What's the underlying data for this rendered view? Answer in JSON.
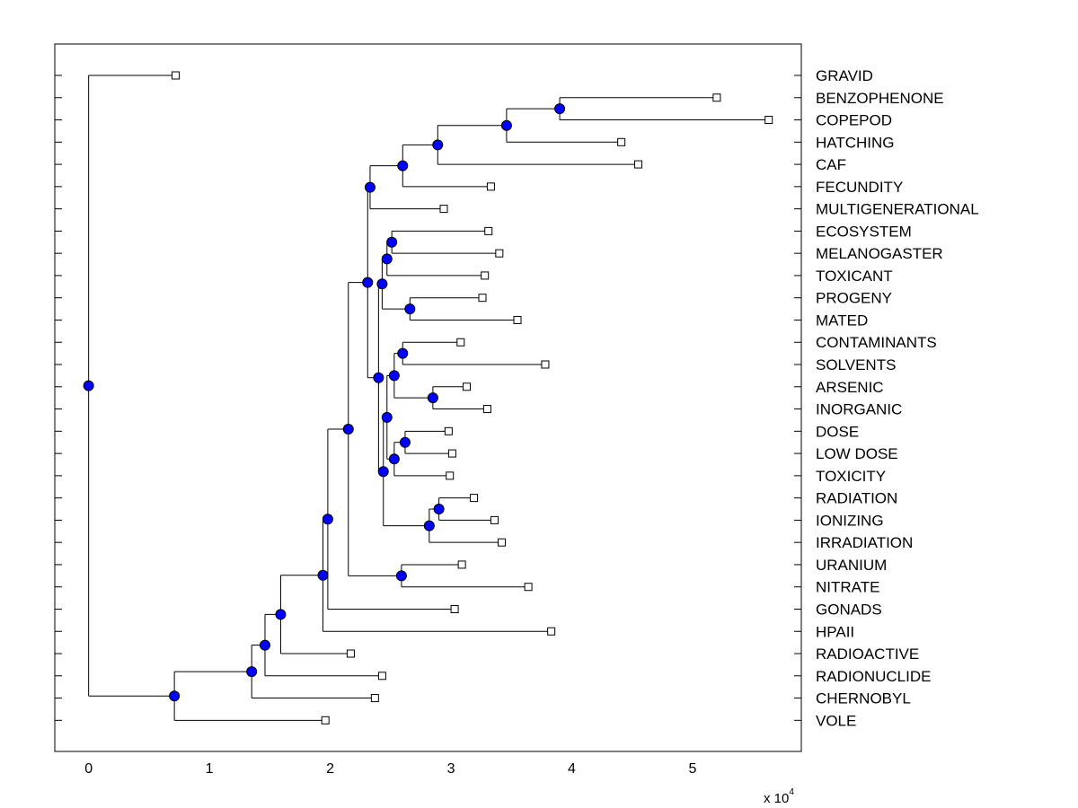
{
  "chart_data": {
    "type": "dendrogram",
    "title": "",
    "xlabel": "",
    "ylabel": "",
    "x_scale_label": "x 10",
    "x_scale_exponent": "4",
    "xlim": [
      -0.28,
      5.9
    ],
    "x_ticks": [
      0,
      1,
      2,
      3,
      4,
      5
    ],
    "x_tick_labels": [
      "0",
      "1",
      "2",
      "3",
      "4",
      "5"
    ],
    "grid": false,
    "colors": {
      "node_fill": "#0000ff",
      "line": "#000000",
      "leaf_fill": "#ffffff"
    },
    "leaves": [
      {
        "label": "GRAVID",
        "x": 0.72
      },
      {
        "label": "BENZOPHENONE",
        "x": 5.2
      },
      {
        "label": "COPEPOD",
        "x": 5.63
      },
      {
        "label": "HATCHING",
        "x": 4.41
      },
      {
        "label": "CAF",
        "x": 4.55
      },
      {
        "label": "FECUNDITY",
        "x": 3.33
      },
      {
        "label": "MULTIGENERATIONAL",
        "x": 2.94
      },
      {
        "label": "ECOSYSTEM",
        "x": 3.31
      },
      {
        "label": "MELANOGASTER",
        "x": 3.4
      },
      {
        "label": "TOXICANT",
        "x": 3.28
      },
      {
        "label": "PROGENY",
        "x": 3.26
      },
      {
        "label": "MATED",
        "x": 3.55
      },
      {
        "label": "CONTAMINANTS",
        "x": 3.08
      },
      {
        "label": "SOLVENTS",
        "x": 3.78
      },
      {
        "label": "ARSENIC",
        "x": 3.13
      },
      {
        "label": "INORGANIC",
        "x": 3.3
      },
      {
        "label": "DOSE",
        "x": 2.98
      },
      {
        "label": "LOW DOSE",
        "x": 3.01
      },
      {
        "label": "TOXICITY",
        "x": 2.99
      },
      {
        "label": "RADIATION",
        "x": 3.19
      },
      {
        "label": "IONIZING",
        "x": 3.36
      },
      {
        "label": "IRRADIATION",
        "x": 3.42
      },
      {
        "label": "URANIUM",
        "x": 3.09
      },
      {
        "label": "NITRATE",
        "x": 3.64
      },
      {
        "label": "GONADS",
        "x": 3.03
      },
      {
        "label": "HPAII",
        "x": 3.83
      },
      {
        "label": "RADIOACTIVE",
        "x": 2.17
      },
      {
        "label": "RADIONUCLIDE",
        "x": 2.43
      },
      {
        "label": "CHERNOBYL",
        "x": 2.37
      },
      {
        "label": "VOLE",
        "x": 1.96
      }
    ],
    "nodes": [
      {
        "id": "N_root",
        "x": 0.0,
        "children": [
          "L0",
          "N_vole"
        ]
      },
      {
        "id": "N_vole",
        "x": 0.71,
        "children": [
          "N_cher",
          "L29"
        ]
      },
      {
        "id": "N_cher",
        "x": 1.35,
        "children": [
          "N_rn",
          "L28"
        ]
      },
      {
        "id": "N_rn",
        "x": 1.46,
        "children": [
          "N_ra",
          "L27"
        ]
      },
      {
        "id": "N_ra",
        "x": 1.59,
        "children": [
          "N_hp",
          "L26"
        ]
      },
      {
        "id": "N_hp",
        "x": 1.94,
        "children": [
          "N_gon",
          "L25"
        ]
      },
      {
        "id": "N_gon",
        "x": 1.98,
        "children": [
          "N_main",
          "L24"
        ]
      },
      {
        "id": "N_main",
        "x": 2.15,
        "children": [
          "N_big",
          "N_uran"
        ]
      },
      {
        "id": "N_uran",
        "x": 2.59,
        "children": [
          "L22",
          "L23"
        ]
      },
      {
        "id": "N_big",
        "x": 2.31,
        "children": [
          "N_top",
          "N_bot"
        ]
      },
      {
        "id": "N_top",
        "x": 2.33,
        "children": [
          "N_fec",
          "L6"
        ]
      },
      {
        "id": "N_fec",
        "x": 2.6,
        "children": [
          "N_caf",
          "L5"
        ]
      },
      {
        "id": "N_caf",
        "x": 2.89,
        "children": [
          "N_hat",
          "L4"
        ]
      },
      {
        "id": "N_hat",
        "x": 3.46,
        "children": [
          "N_ben",
          "L3"
        ]
      },
      {
        "id": "N_ben",
        "x": 3.9,
        "children": [
          "L1",
          "L2"
        ]
      },
      {
        "id": "N_bot",
        "x": 2.4,
        "children": [
          "N_eco",
          "N_low"
        ]
      },
      {
        "id": "N_eco",
        "x": 2.43,
        "children": [
          "N_eco2",
          "N_prog"
        ]
      },
      {
        "id": "N_eco2",
        "x": 2.47,
        "children": [
          "N_eco3",
          "L9"
        ]
      },
      {
        "id": "N_eco3",
        "x": 2.51,
        "children": [
          "L7",
          "L8"
        ]
      },
      {
        "id": "N_prog",
        "x": 2.66,
        "children": [
          "L10",
          "L11"
        ]
      },
      {
        "id": "N_low",
        "x": 2.44,
        "children": [
          "N_dose",
          "N_rad"
        ]
      },
      {
        "id": "N_dose",
        "x": 2.47,
        "children": [
          "N_cont",
          "N_dose2"
        ]
      },
      {
        "id": "N_cont",
        "x": 2.53,
        "children": [
          "N_cont2",
          "N_ars"
        ]
      },
      {
        "id": "N_cont2",
        "x": 2.6,
        "children": [
          "L12",
          "L13"
        ]
      },
      {
        "id": "N_ars",
        "x": 2.85,
        "children": [
          "L14",
          "L15"
        ]
      },
      {
        "id": "N_dose2",
        "x": 2.53,
        "children": [
          "N_dose3",
          "L18"
        ]
      },
      {
        "id": "N_dose3",
        "x": 2.62,
        "children": [
          "L16",
          "L17"
        ]
      },
      {
        "id": "N_rad",
        "x": 2.82,
        "children": [
          "N_rad2",
          "L21"
        ]
      },
      {
        "id": "N_rad2",
        "x": 2.9,
        "children": [
          "L19",
          "L20"
        ]
      }
    ]
  }
}
